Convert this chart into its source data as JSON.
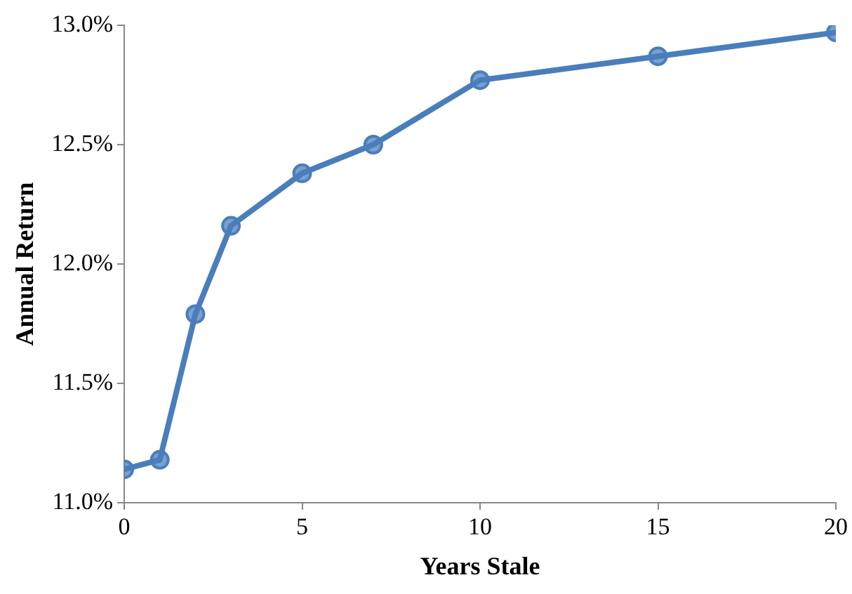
{
  "chart_data": {
    "type": "line",
    "xlabel": "Years Stale",
    "ylabel": "Annual Return",
    "x": [
      0,
      1,
      2,
      3,
      5,
      7,
      10,
      15,
      20
    ],
    "series": [
      {
        "color": "#4a7ebb",
        "values": [
          11.14,
          11.18,
          11.79,
          12.16,
          12.38,
          12.5,
          12.77,
          12.87,
          12.97
        ]
      }
    ],
    "xlim": [
      0,
      20
    ],
    "xticks": [
      0,
      5,
      10,
      15,
      20
    ],
    "ylim": [
      11,
      13
    ],
    "yticks": [
      {
        "value": 11,
        "label": "11.0%"
      },
      {
        "value": 11.5,
        "label": "11.5%"
      },
      {
        "value": 12,
        "label": "12.0%"
      },
      {
        "value": 12.5,
        "label": "12.5%"
      },
      {
        "value": 13,
        "label": "13.0%"
      }
    ],
    "grid": false,
    "legend": false,
    "marker": "circle",
    "line_style": "solid"
  }
}
